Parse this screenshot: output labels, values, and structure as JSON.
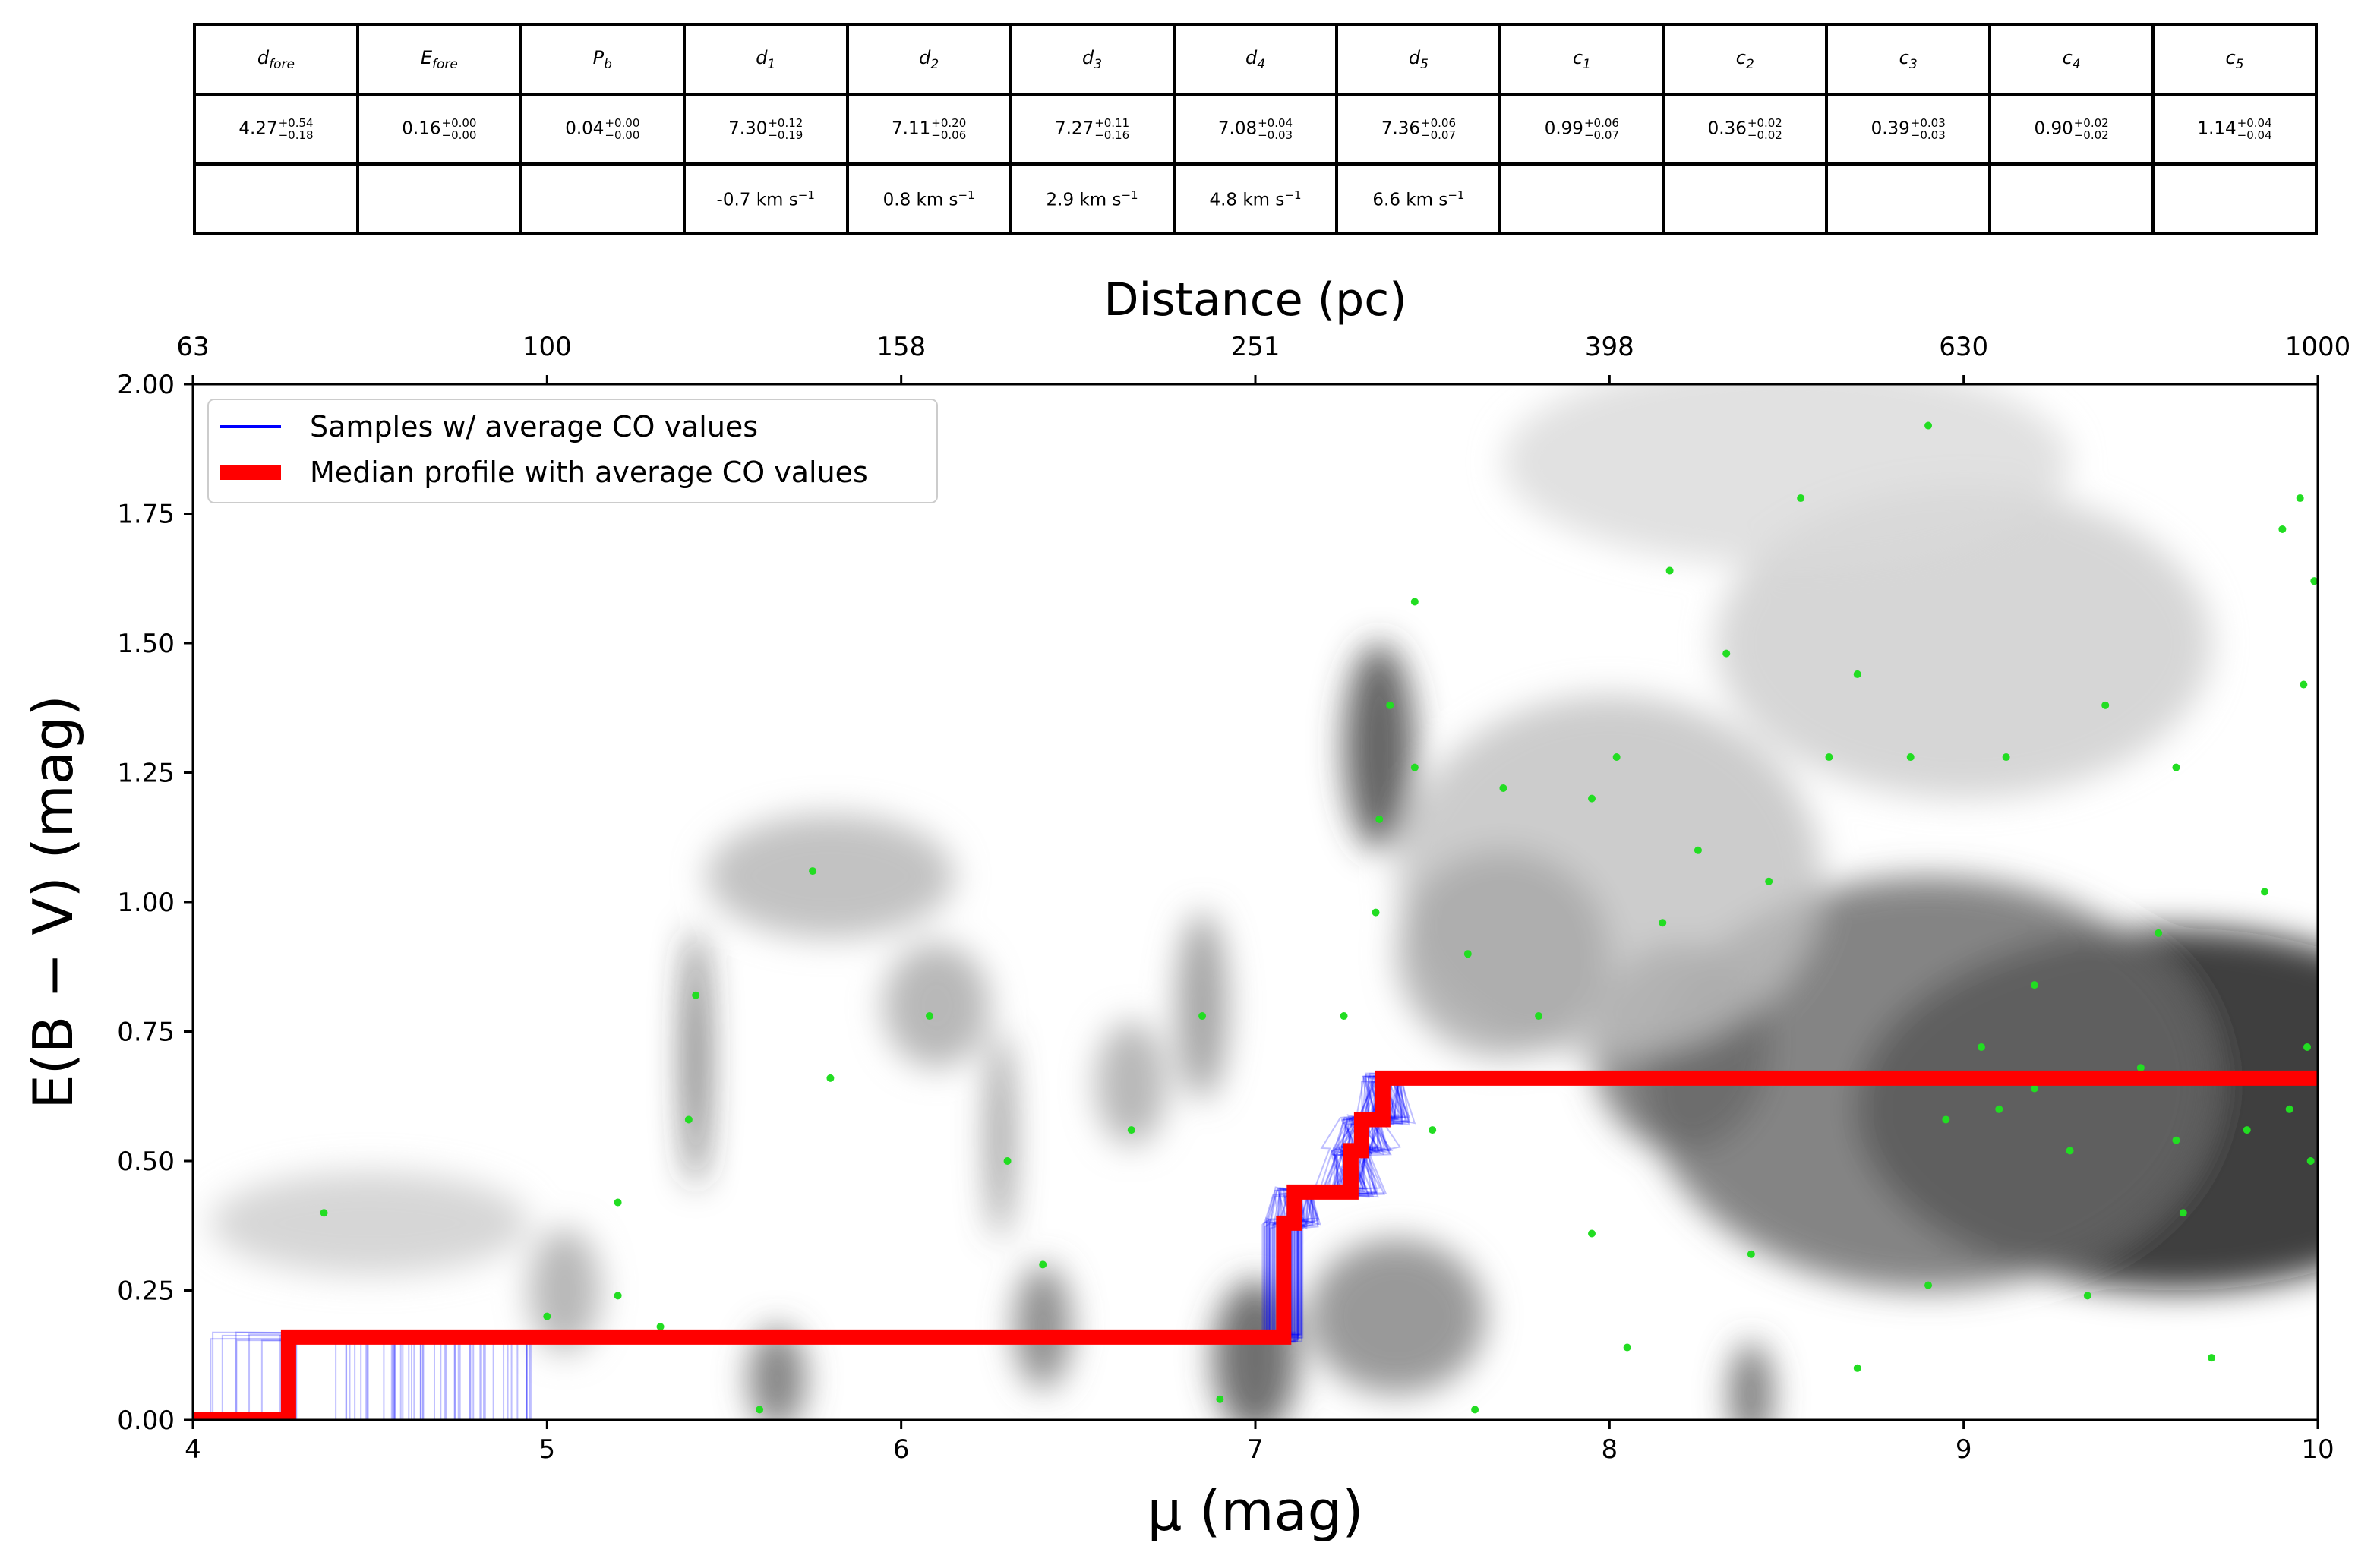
{
  "table": {
    "headers": [
      {
        "base": "d",
        "sub": "fore"
      },
      {
        "base": "E",
        "sub": "fore"
      },
      {
        "base": "P",
        "sub": "b"
      },
      {
        "base": "d",
        "sub": "1"
      },
      {
        "base": "d",
        "sub": "2"
      },
      {
        "base": "d",
        "sub": "3"
      },
      {
        "base": "d",
        "sub": "4"
      },
      {
        "base": "d",
        "sub": "5"
      },
      {
        "base": "c",
        "sub": "1"
      },
      {
        "base": "c",
        "sub": "2"
      },
      {
        "base": "c",
        "sub": "3"
      },
      {
        "base": "c",
        "sub": "4"
      },
      {
        "base": "c",
        "sub": "5"
      }
    ],
    "values": [
      {
        "val": "4.27",
        "plus": "+0.54",
        "minus": "−0.18"
      },
      {
        "val": "0.16",
        "plus": "+0.00",
        "minus": "−0.00"
      },
      {
        "val": "0.04",
        "plus": "+0.00",
        "minus": "−0.00"
      },
      {
        "val": "7.30",
        "plus": "+0.12",
        "minus": "−0.19"
      },
      {
        "val": "7.11",
        "plus": "+0.20",
        "minus": "−0.06"
      },
      {
        "val": "7.27",
        "plus": "+0.11",
        "minus": "−0.16"
      },
      {
        "val": "7.08",
        "plus": "+0.04",
        "minus": "−0.03"
      },
      {
        "val": "7.36",
        "plus": "+0.06",
        "minus": "−0.07"
      },
      {
        "val": "0.99",
        "plus": "+0.06",
        "minus": "−0.07"
      },
      {
        "val": "0.36",
        "plus": "+0.02",
        "minus": "−0.02"
      },
      {
        "val": "0.39",
        "plus": "+0.03",
        "minus": "−0.03"
      },
      {
        "val": "0.90",
        "plus": "+0.02",
        "minus": "−0.02"
      },
      {
        "val": "1.14",
        "plus": "+0.04",
        "minus": "−0.04"
      }
    ],
    "velocities": [
      "",
      "",
      "",
      "-0.7 km s",
      "0.8 km s",
      "2.9 km s",
      "4.8 km s",
      "6.6 km s",
      "",
      "",
      "",
      "",
      ""
    ],
    "velocity_exp": "−1"
  },
  "chart_data": {
    "type": "line",
    "xlabel": "μ (mag)",
    "ylabel": "E(B − V) (mag)",
    "top_xlabel": "Distance (pc)",
    "xlim": [
      4,
      10
    ],
    "ylim": [
      0,
      2
    ],
    "xticks": [
      "4",
      "5",
      "6",
      "7",
      "8",
      "9",
      "10"
    ],
    "yticks": [
      "0.00",
      "0.25",
      "0.50",
      "0.75",
      "1.00",
      "1.25",
      "1.50",
      "1.75",
      "2.00"
    ],
    "top_ticks": [
      {
        "mu": 4,
        "label": "63"
      },
      {
        "mu": 5,
        "label": "100"
      },
      {
        "mu": 6,
        "label": "158"
      },
      {
        "mu": 7,
        "label": "251"
      },
      {
        "mu": 8,
        "label": "398"
      },
      {
        "mu": 9,
        "label": "630"
      },
      {
        "mu": 10,
        "label": "1000"
      }
    ],
    "legend": {
      "placement": "top-left",
      "entries": [
        "Samples  w/ average CO values",
        "Median profile with average CO values"
      ]
    },
    "colors": {
      "samples": "#0000ff",
      "median": "#ff0000",
      "stars": "#22dd22"
    },
    "median_profile": {
      "x": [
        4,
        4.27,
        4.27,
        7.08,
        7.08,
        7.11,
        7.11,
        7.27,
        7.27,
        7.3,
        7.3,
        7.36,
        7.36,
        10
      ],
      "y": [
        0,
        0,
        0.16,
        0.16,
        0.38,
        0.38,
        0.44,
        0.44,
        0.52,
        0.52,
        0.58,
        0.58,
        0.66,
        0.66
      ]
    },
    "heatmap_blobs": [
      {
        "mu": 9.6,
        "E": 0.6,
        "w": 0.9,
        "h": 0.35,
        "v": 0.95
      },
      {
        "mu": 8.9,
        "E": 0.65,
        "w": 0.8,
        "h": 0.4,
        "v": 0.6
      },
      {
        "mu": 8.2,
        "E": 0.72,
        "w": 0.25,
        "h": 0.2,
        "v": 0.6
      },
      {
        "mu": 7.35,
        "E": 1.3,
        "w": 0.1,
        "h": 0.2,
        "v": 0.75
      },
      {
        "mu": 5.42,
        "E": 0.7,
        "w": 0.03,
        "h": 0.25,
        "v": 0.8
      },
      {
        "mu": 6.28,
        "E": 0.55,
        "w": 0.03,
        "h": 0.2,
        "v": 0.6
      },
      {
        "mu": 6.1,
        "E": 0.8,
        "w": 0.15,
        "h": 0.12,
        "v": 0.35
      },
      {
        "mu": 5.8,
        "E": 1.05,
        "w": 0.35,
        "h": 0.12,
        "v": 0.3
      },
      {
        "mu": 6.85,
        "E": 0.8,
        "w": 0.07,
        "h": 0.18,
        "v": 0.45
      },
      {
        "mu": 6.65,
        "E": 0.65,
        "w": 0.1,
        "h": 0.12,
        "v": 0.35
      },
      {
        "mu": 7.0,
        "E": 0.12,
        "w": 0.12,
        "h": 0.15,
        "v": 0.7
      },
      {
        "mu": 5.65,
        "E": 0.08,
        "w": 0.08,
        "h": 0.1,
        "v": 0.6
      },
      {
        "mu": 6.4,
        "E": 0.18,
        "w": 0.08,
        "h": 0.12,
        "v": 0.55
      },
      {
        "mu": 7.4,
        "E": 0.2,
        "w": 0.25,
        "h": 0.15,
        "v": 0.5
      },
      {
        "mu": 8.4,
        "E": 0.05,
        "w": 0.06,
        "h": 0.1,
        "v": 0.65
      },
      {
        "mu": 5.05,
        "E": 0.25,
        "w": 0.1,
        "h": 0.12,
        "v": 0.35
      },
      {
        "mu": 4.5,
        "E": 0.38,
        "w": 0.45,
        "h": 0.1,
        "v": 0.2
      },
      {
        "mu": 8.0,
        "E": 1.05,
        "w": 0.6,
        "h": 0.35,
        "v": 0.25
      },
      {
        "mu": 9.0,
        "E": 1.5,
        "w": 0.7,
        "h": 0.3,
        "v": 0.2
      },
      {
        "mu": 8.5,
        "E": 1.85,
        "w": 0.8,
        "h": 0.2,
        "v": 0.15
      },
      {
        "mu": 7.7,
        "E": 0.9,
        "w": 0.3,
        "h": 0.2,
        "v": 0.35
      }
    ],
    "stars": [
      [
        4.37,
        0.4
      ],
      [
        5.0,
        0.2
      ],
      [
        5.2,
        0.42
      ],
      [
        5.2,
        0.24
      ],
      [
        5.32,
        0.18
      ],
      [
        5.42,
        0.82
      ],
      [
        5.4,
        0.58
      ],
      [
        5.6,
        0.02
      ],
      [
        5.75,
        1.06
      ],
      [
        5.8,
        0.66
      ],
      [
        6.08,
        0.78
      ],
      [
        6.3,
        0.5
      ],
      [
        6.4,
        0.3
      ],
      [
        6.65,
        0.56
      ],
      [
        6.85,
        0.78
      ],
      [
        6.9,
        0.04
      ],
      [
        7.25,
        0.78
      ],
      [
        7.35,
        1.16
      ],
      [
        7.34,
        0.98
      ],
      [
        7.38,
        1.38
      ],
      [
        7.45,
        1.58
      ],
      [
        7.45,
        1.26
      ],
      [
        7.5,
        0.56
      ],
      [
        7.6,
        0.9
      ],
      [
        7.62,
        0.02
      ],
      [
        7.7,
        1.22
      ],
      [
        7.8,
        0.78
      ],
      [
        7.95,
        1.2
      ],
      [
        7.95,
        0.36
      ],
      [
        8.02,
        1.28
      ],
      [
        8.05,
        0.14
      ],
      [
        8.15,
        0.96
      ],
      [
        8.17,
        1.64
      ],
      [
        8.25,
        1.1
      ],
      [
        8.33,
        1.48
      ],
      [
        8.4,
        0.32
      ],
      [
        8.45,
        1.04
      ],
      [
        8.54,
        1.78
      ],
      [
        8.6,
        0.66
      ],
      [
        8.62,
        1.28
      ],
      [
        8.7,
        1.44
      ],
      [
        8.7,
        0.1
      ],
      [
        8.85,
        1.28
      ],
      [
        8.9,
        1.92
      ],
      [
        8.9,
        0.26
      ],
      [
        9.05,
        0.72
      ],
      [
        9.1,
        0.6
      ],
      [
        9.12,
        1.28
      ],
      [
        9.2,
        0.84
      ],
      [
        9.3,
        0.52
      ],
      [
        9.4,
        1.38
      ],
      [
        9.35,
        0.24
      ],
      [
        9.5,
        0.68
      ],
      [
        9.55,
        0.94
      ],
      [
        9.6,
        1.26
      ],
      [
        9.62,
        0.4
      ],
      [
        9.7,
        0.12
      ],
      [
        9.75,
        0.66
      ],
      [
        9.8,
        0.56
      ],
      [
        9.85,
        1.02
      ],
      [
        9.9,
        1.72
      ],
      [
        9.92,
        0.6
      ],
      [
        9.95,
        1.78
      ],
      [
        9.96,
        1.42
      ],
      [
        9.98,
        0.5
      ],
      [
        9.99,
        1.62
      ],
      [
        9.97,
        0.72
      ],
      [
        9.6,
        0.54
      ],
      [
        9.2,
        0.64
      ],
      [
        8.95,
        0.58
      ]
    ]
  }
}
